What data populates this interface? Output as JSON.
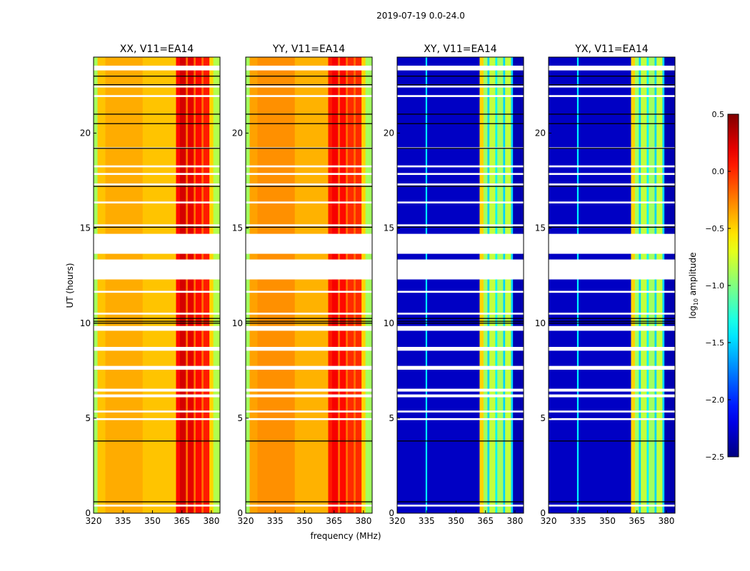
{
  "chart_data": {
    "type": "heatmap",
    "title": "2019-07-19 0.0-24.0",
    "xlabel": "frequency (MHz)",
    "ylabel": "UT (hours)",
    "xlim": [
      320,
      384.4
    ],
    "ylim": [
      0,
      24
    ],
    "xticks": [
      "320",
      "335",
      "350",
      "365",
      "380"
    ],
    "xtick_values": [
      320,
      335,
      350,
      365,
      380
    ],
    "yticks": [
      "0",
      "5",
      "10",
      "15",
      "20"
    ],
    "ytick_values": [
      0,
      5,
      10,
      15,
      20
    ],
    "colorbar": {
      "label": "log",
      "label_sub": "10",
      "label_rest": " amplitude",
      "range": [
        -2.5,
        0.5
      ],
      "ticks": [
        "0.5",
        "0.0",
        "−0.5",
        "−1.0",
        "−1.5",
        "−2.0",
        "−2.5"
      ],
      "tick_values": [
        0.5,
        0.0,
        -0.5,
        -1.0,
        -1.5,
        -2.0,
        -2.5
      ],
      "colormap": "jet"
    },
    "flagged_ut": [
      [
        23.3,
        23.55
      ],
      [
        22.4,
        22.5
      ],
      [
        21.9,
        22.0
      ],
      [
        19.2,
        19.25
      ],
      [
        18.2,
        18.3
      ],
      [
        17.8,
        17.9
      ],
      [
        17.25,
        17.35
      ],
      [
        16.3,
        16.4
      ],
      [
        15.1,
        15.2
      ],
      [
        13.65,
        14.7
      ],
      [
        12.3,
        13.35
      ],
      [
        11.6,
        11.7
      ],
      [
        10.45,
        10.55
      ],
      [
        9.6,
        9.85
      ],
      [
        8.55,
        8.75
      ],
      [
        7.55,
        7.75
      ],
      [
        6.4,
        6.55
      ],
      [
        6.1,
        6.25
      ],
      [
        5.3,
        5.4
      ],
      [
        4.9,
        5.0
      ],
      [
        0.35,
        0.45
      ]
    ],
    "black_lines_ut": [
      0.6,
      3.8,
      10.0,
      10.1,
      10.25,
      15.05,
      17.2,
      19.2,
      20.5,
      21.0,
      22.55,
      23.0
    ],
    "panels": [
      {
        "title": "XX, V11=EA14",
        "profile": [
          [
            320,
            322,
            -0.9
          ],
          [
            322,
            326,
            -0.45
          ],
          [
            326,
            345,
            -0.38
          ],
          [
            345,
            362,
            -0.45
          ],
          [
            362,
            364,
            0.1
          ],
          [
            364,
            367,
            0.25
          ],
          [
            367,
            368,
            -0.2
          ],
          [
            368,
            371,
            0.2
          ],
          [
            371,
            372,
            -0.2
          ],
          [
            372,
            375,
            0.1
          ],
          [
            375,
            376,
            -0.2
          ],
          [
            376,
            379,
            0.05
          ],
          [
            379,
            381,
            -0.5
          ],
          [
            381,
            384.4,
            -0.85
          ]
        ]
      },
      {
        "title": "YY, V11=EA14",
        "profile": [
          [
            320,
            322,
            -0.9
          ],
          [
            322,
            326,
            -0.35
          ],
          [
            326,
            345,
            -0.3
          ],
          [
            345,
            362,
            -0.4
          ],
          [
            362,
            364,
            0.05
          ],
          [
            364,
            367,
            0.15
          ],
          [
            367,
            368,
            -0.2
          ],
          [
            368,
            371,
            0.1
          ],
          [
            371,
            372,
            -0.2
          ],
          [
            372,
            375,
            0.0
          ],
          [
            375,
            376,
            -0.2
          ],
          [
            376,
            379,
            0.0
          ],
          [
            379,
            381,
            -0.5
          ],
          [
            381,
            384.4,
            -0.9
          ]
        ]
      },
      {
        "title": "XY, V11=EA14",
        "profile": [
          [
            320,
            334.5,
            -2.3
          ],
          [
            334.5,
            335.3,
            -1.4
          ],
          [
            335.3,
            362,
            -2.3
          ],
          [
            362,
            364,
            -0.5
          ],
          [
            364,
            366,
            -0.9
          ],
          [
            366,
            367,
            -1.5
          ],
          [
            367,
            370,
            -0.8
          ],
          [
            370,
            371,
            -1.4
          ],
          [
            371,
            374,
            -0.9
          ],
          [
            374,
            375,
            -1.5
          ],
          [
            375,
            378,
            -0.8
          ],
          [
            378,
            379,
            -1.5
          ],
          [
            379,
            384.4,
            -2.35
          ]
        ]
      },
      {
        "title": "YX, V11=EA14",
        "profile": [
          [
            320,
            334.5,
            -2.3
          ],
          [
            334.5,
            335.3,
            -1.4
          ],
          [
            335.3,
            362,
            -2.3
          ],
          [
            362,
            364,
            -0.5
          ],
          [
            364,
            366,
            -0.9
          ],
          [
            366,
            367,
            -1.5
          ],
          [
            367,
            370,
            -0.8
          ],
          [
            370,
            371,
            -1.4
          ],
          [
            371,
            374,
            -0.9
          ],
          [
            374,
            375,
            -1.5
          ],
          [
            375,
            378,
            -0.8
          ],
          [
            378,
            379,
            -1.5
          ],
          [
            379,
            384.4,
            -2.35
          ]
        ]
      }
    ]
  }
}
